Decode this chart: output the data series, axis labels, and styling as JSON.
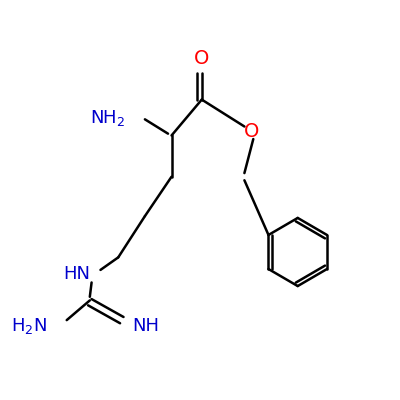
{
  "background": "#ffffff",
  "bond_color": "#000000",
  "bond_width": 1.8,
  "color_O": "#ff0000",
  "color_N": "#0000cc",
  "font_size": 13,
  "xlim": [
    -0.05,
    1.05
  ],
  "ylim": [
    -0.05,
    1.05
  ]
}
